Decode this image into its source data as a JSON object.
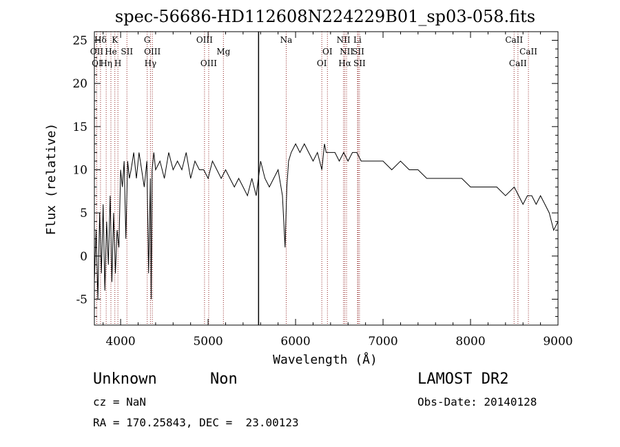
{
  "chart_data": {
    "type": "line",
    "title": "spec-56686-HD112608N224229B01_sp03-058.fits",
    "xlabel": "Wavelength (Å)",
    "ylabel": "Flux (relative)",
    "xlim": [
      3700,
      9000
    ],
    "ylim": [
      -8,
      26
    ],
    "xticks": [
      4000,
      5000,
      6000,
      7000,
      8000,
      9000
    ],
    "yticks": [
      -5,
      0,
      5,
      10,
      15,
      20,
      25
    ],
    "grid": false,
    "line_color": "#000000",
    "marker_color": "#8b1a1a",
    "vertical_marker": 5577,
    "line_markers": [
      {
        "label": "Hδ",
        "x": 3770,
        "row": 0
      },
      {
        "label": "K",
        "x": 3934,
        "row": 0
      },
      {
        "label": "G",
        "x": 4304,
        "row": 0
      },
      {
        "label": "OIII",
        "x": 4959,
        "row": 0
      },
      {
        "label": "Na",
        "x": 5893,
        "row": 0
      },
      {
        "label": "NII",
        "x": 6548,
        "row": 0
      },
      {
        "label": "Li",
        "x": 6708,
        "row": 0
      },
      {
        "label": "CaII",
        "x": 8498,
        "row": 0
      },
      {
        "label": "OII",
        "x": 3727,
        "row": 1
      },
      {
        "label": "He",
        "x": 3889,
        "row": 1
      },
      {
        "label": "SII",
        "x": 4072,
        "row": 1
      },
      {
        "label": "OIII",
        "x": 4363,
        "row": 1
      },
      {
        "label": "Mg",
        "x": 5175,
        "row": 1
      },
      {
        "label": "OI",
        "x": 6364,
        "row": 1
      },
      {
        "label": "NII",
        "x": 6583,
        "row": 1
      },
      {
        "label": "SII",
        "x": 6716,
        "row": 1
      },
      {
        "label": "CaII",
        "x": 8662,
        "row": 1
      },
      {
        "label": "OI",
        "x": 3727,
        "row": 2
      },
      {
        "label": "Hη",
        "x": 3835,
        "row": 2
      },
      {
        "label": "H",
        "x": 3969,
        "row": 2
      },
      {
        "label": "Hγ",
        "x": 4341,
        "row": 2
      },
      {
        "label": "OIII",
        "x": 5007,
        "row": 2
      },
      {
        "label": "OI",
        "x": 6300,
        "row": 2
      },
      {
        "label": "Hα",
        "x": 6563,
        "row": 2
      },
      {
        "label": "SII",
        "x": 6731,
        "row": 2
      },
      {
        "label": "CaII",
        "x": 8542,
        "row": 2
      }
    ],
    "series": [
      {
        "x": [
          3700,
          3720,
          3740,
          3760,
          3780,
          3800,
          3820,
          3840,
          3860,
          3880,
          3900,
          3920,
          3940,
          3960,
          3980,
          4000,
          4020,
          4040,
          4060,
          4080,
          4100,
          4120,
          4150,
          4180,
          4210,
          4240,
          4270,
          4300,
          4320,
          4340,
          4350,
          4360,
          4380,
          4400,
          4450,
          4500,
          4550,
          4600,
          4650,
          4700,
          4750,
          4800,
          4850,
          4900,
          4950,
          5000,
          5050,
          5100,
          5150,
          5200,
          5250,
          5300,
          5350,
          5400,
          5450,
          5500,
          5550,
          5600,
          5650,
          5700,
          5750,
          5800,
          5850,
          5880,
          5900,
          5920,
          5950,
          6000,
          6050,
          6100,
          6150,
          6200,
          6250,
          6300,
          6330,
          6350,
          6400,
          6450,
          6500,
          6550,
          6600,
          6650,
          6700,
          6750,
          6800,
          6900,
          7000,
          7100,
          7200,
          7300,
          7400,
          7500,
          7600,
          7700,
          7800,
          7900,
          8000,
          8100,
          8200,
          8300,
          8400,
          8500,
          8550,
          8600,
          8650,
          8700,
          8750,
          8800,
          8850,
          8900,
          8950,
          9000
        ],
        "y": [
          -3,
          3,
          -5,
          5,
          -2,
          6,
          -4,
          4,
          -1,
          7,
          -3,
          5,
          -2,
          3,
          1,
          10,
          8,
          11,
          2,
          11,
          9,
          10,
          12,
          9,
          12,
          10,
          8,
          11,
          -2,
          9,
          -5,
          10,
          12,
          10,
          11,
          9,
          12,
          10,
          11,
          10,
          12,
          9,
          11,
          10,
          10,
          9,
          11,
          10,
          9,
          10,
          9,
          8,
          9,
          8,
          7,
          9,
          7,
          11,
          9,
          8,
          9,
          10,
          7,
          1,
          8,
          11,
          12,
          13,
          12,
          13,
          12,
          11,
          12,
          10,
          13,
          12,
          12,
          12,
          11,
          12,
          11,
          12,
          12,
          11,
          11,
          11,
          11,
          10,
          11,
          10,
          10,
          9,
          9,
          9,
          9,
          9,
          8,
          8,
          8,
          8,
          7,
          8,
          7,
          6,
          7,
          7,
          6,
          7,
          6,
          5,
          3,
          4
        ]
      }
    ]
  },
  "info": {
    "object_class": "Unknown",
    "subclass": "Non",
    "survey": "LAMOST DR2",
    "cz": "cz = NaN",
    "obs_date": "Obs-Date: 20140128",
    "coords": "RA = 170.25843, DEC =  23.00123"
  }
}
